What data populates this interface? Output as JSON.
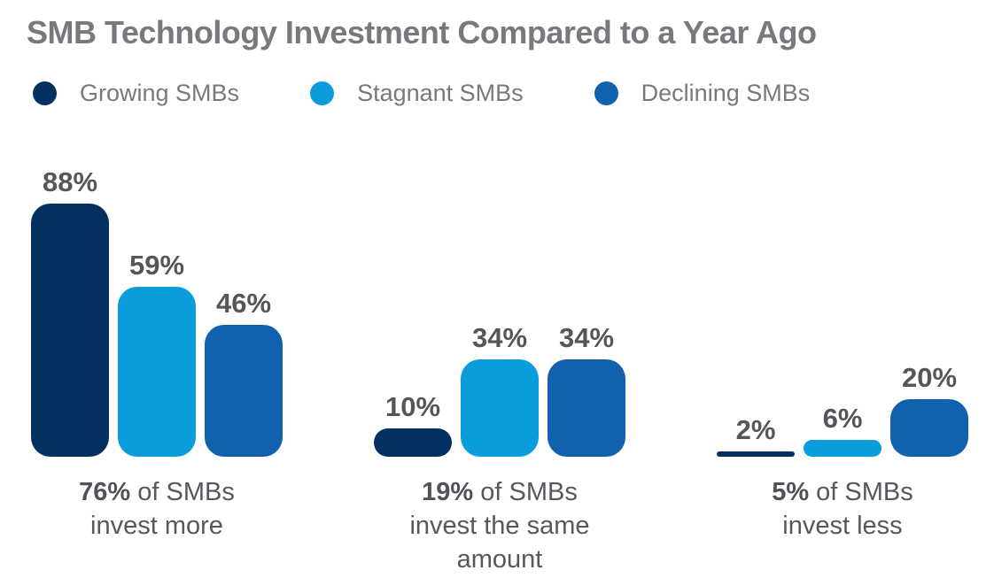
{
  "title": "SMB Technology Investment Compared to a Year Ago",
  "colors": {
    "growing": "#04305f",
    "stagnant": "#0a9cdb",
    "declining": "#1261ae",
    "title_text": "#77797c",
    "value_label_text": "#54565a",
    "caption_text": "#55585c",
    "background": "#ffffff"
  },
  "legend": {
    "items": [
      {
        "label": "Growing SMBs",
        "color": "#04305f"
      },
      {
        "label": "Stagnant SMBs",
        "color": "#0a9cdb"
      },
      {
        "label": "Declining SMBs",
        "color": "#1261ae"
      }
    ]
  },
  "chart_data": {
    "type": "bar",
    "title": "SMB Technology Investment Compared to a Year Ago",
    "unit": "percent",
    "ylim": [
      0,
      100
    ],
    "grid": false,
    "legend_position": "top-left",
    "series": [
      {
        "name": "Growing SMBs",
        "color": "#04305f"
      },
      {
        "name": "Stagnant SMBs",
        "color": "#0a9cdb"
      },
      {
        "name": "Declining SMBs",
        "color": "#1261ae"
      }
    ],
    "groups": [
      {
        "category": "invest more",
        "values": [
          88,
          59,
          46
        ],
        "labels": [
          "88%",
          "59%",
          "46%"
        ],
        "caption_bold": "76%",
        "caption_line1_rest": " of SMBs",
        "caption_line2": "invest more"
      },
      {
        "category": "invest the same amount",
        "values": [
          10,
          34,
          34
        ],
        "labels": [
          "10%",
          "34%",
          "34%"
        ],
        "caption_bold": "19%",
        "caption_line1_rest": " of SMBs",
        "caption_line2": "invest the same amount"
      },
      {
        "category": "invest less",
        "values": [
          2,
          6,
          20
        ],
        "labels": [
          "2%",
          "6%",
          "20%"
        ],
        "caption_bold": "5%",
        "caption_line1_rest": " of SMBs",
        "caption_line2": "invest less"
      }
    ]
  }
}
